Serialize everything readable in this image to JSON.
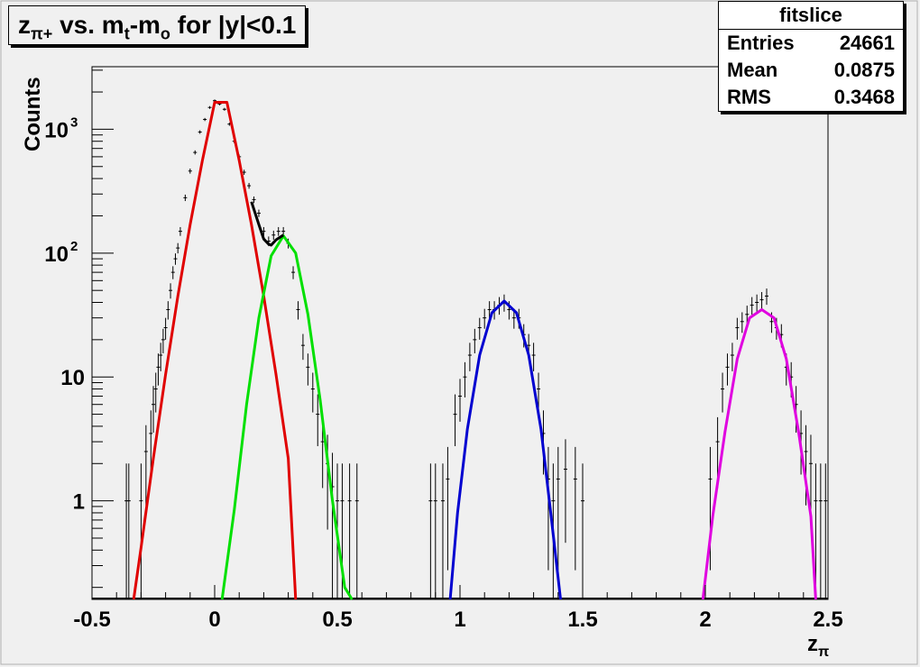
{
  "title": {
    "z": "z",
    "z_sub": "π+",
    "mid": " vs. m",
    "m_sub": "t",
    "m2": "-m",
    "m2_sub": "o",
    "tail": " for |y|<0.1"
  },
  "stats": {
    "name": "fitslice",
    "rows": [
      {
        "label": "Entries",
        "value": "24661"
      },
      {
        "label": "Mean",
        "value": "0.0875"
      },
      {
        "label": "RMS",
        "value": "0.3468"
      }
    ]
  },
  "chart_data": {
    "type": "line",
    "title": "zπ+ vs. mt-mo for |y|<0.1",
    "xlabel": "zπ",
    "ylabel": "Counts",
    "xlim": [
      -0.5,
      2.5
    ],
    "ylim": [
      0.16,
      3200
    ],
    "log_y": true,
    "grid": false,
    "x_ticks": [
      "-0.5",
      "0",
      "0.5",
      "1",
      "1.5",
      "2",
      "2.5"
    ],
    "y_ticks": [
      {
        "value": 1,
        "label": "1"
      },
      {
        "value": 10,
        "label": "10"
      },
      {
        "value": 100,
        "label": "10",
        "sup": "2"
      },
      {
        "value": 1000,
        "label": "10",
        "sup": "3"
      }
    ],
    "series": [
      {
        "color": "#e00000",
        "x": [
          -0.33,
          -0.3,
          -0.25,
          -0.2,
          -0.15,
          -0.1,
          -0.05,
          0.0,
          0.05,
          0.1,
          0.15,
          0.2,
          0.25,
          0.3,
          0.33
        ],
        "values": [
          0.16,
          0.42,
          2.2,
          10.5,
          45,
          170,
          560,
          1650,
          1650,
          560,
          170,
          45,
          10.5,
          2.2,
          0.16
        ]
      },
      {
        "color": "#00e000",
        "x": [
          0.03,
          0.08,
          0.13,
          0.18,
          0.23,
          0.28,
          0.33,
          0.38,
          0.43,
          0.48,
          0.53,
          0.56
        ],
        "values": [
          0.16,
          0.85,
          6,
          30,
          95,
          138,
          100,
          32,
          6.5,
          1.0,
          0.2,
          0.16
        ]
      },
      {
        "color": "#0000d0",
        "x": [
          0.96,
          0.99,
          1.03,
          1.08,
          1.13,
          1.18,
          1.23,
          1.28,
          1.33,
          1.37,
          1.41
        ],
        "values": [
          0.16,
          0.8,
          3.8,
          15,
          33,
          41,
          33,
          15,
          3.8,
          0.8,
          0.16
        ]
      },
      {
        "color": "#e000e0",
        "x": [
          1.99,
          2.03,
          2.08,
          2.13,
          2.18,
          2.23,
          2.28,
          2.33,
          2.38,
          2.43,
          2.45
        ],
        "values": [
          0.16,
          0.75,
          3.6,
          14,
          30,
          35,
          30,
          14,
          3.6,
          0.75,
          0.16
        ]
      },
      {
        "color": "#000000",
        "x": [
          0.15,
          0.18,
          0.2,
          0.22,
          0.23,
          0.25,
          0.28
        ],
        "values": [
          260,
          170,
          130,
          118,
          116,
          128,
          140
        ]
      }
    ],
    "points": {
      "x": [
        -0.36,
        -0.35,
        -0.3,
        -0.28,
        -0.26,
        -0.25,
        -0.24,
        -0.23,
        -0.22,
        -0.21,
        -0.2,
        -0.19,
        -0.18,
        -0.17,
        -0.16,
        -0.15,
        -0.14,
        -0.12,
        -0.1,
        -0.08,
        -0.06,
        -0.04,
        -0.02,
        0.0,
        0.02,
        0.04,
        0.06,
        0.08,
        0.1,
        0.12,
        0.14,
        0.16,
        0.18,
        0.2,
        0.22,
        0.24,
        0.26,
        0.28,
        0.3,
        0.32,
        0.34,
        0.36,
        0.38,
        0.4,
        0.42,
        0.44,
        0.46,
        0.48,
        0.5,
        0.52,
        0.55,
        0.58,
        0.88,
        0.9,
        0.93,
        0.95,
        0.98,
        1.0,
        1.02,
        1.04,
        1.06,
        1.08,
        1.1,
        1.12,
        1.14,
        1.16,
        1.18,
        1.2,
        1.22,
        1.24,
        1.26,
        1.28,
        1.3,
        1.32,
        1.34,
        1.36,
        1.38,
        1.4,
        1.43,
        1.47,
        1.5,
        2.02,
        2.05,
        2.07,
        2.09,
        2.11,
        2.13,
        2.15,
        2.17,
        2.19,
        2.21,
        2.23,
        2.25,
        2.27,
        2.29,
        2.31,
        2.33,
        2.35,
        2.37,
        2.39,
        2.41,
        2.43,
        2.45,
        2.47,
        2.49
      ],
      "y": [
        1,
        1,
        1,
        2.5,
        3.5,
        6,
        8,
        12,
        15,
        20,
        25,
        35,
        50,
        70,
        90,
        110,
        150,
        280,
        460,
        650,
        950,
        1200,
        1500,
        1700,
        1600,
        1450,
        1100,
        800,
        600,
        450,
        350,
        270,
        210,
        150,
        125,
        140,
        150,
        150,
        120,
        70,
        35,
        18,
        12,
        8,
        5,
        3,
        2,
        1.3,
        1,
        1,
        1,
        1,
        1,
        1,
        1,
        1.5,
        5,
        7,
        10,
        15,
        20,
        25,
        30,
        35,
        35,
        38,
        40,
        35,
        30,
        30,
        22,
        18,
        15,
        8,
        3.5,
        1.5,
        1,
        1.5,
        1.8,
        1.5,
        1,
        1.5,
        3,
        8,
        12,
        15,
        25,
        28,
        32,
        38,
        40,
        42,
        45,
        28,
        25,
        22,
        12,
        10,
        6,
        3.5,
        2.5,
        2,
        1,
        1,
        1
      ]
    }
  }
}
